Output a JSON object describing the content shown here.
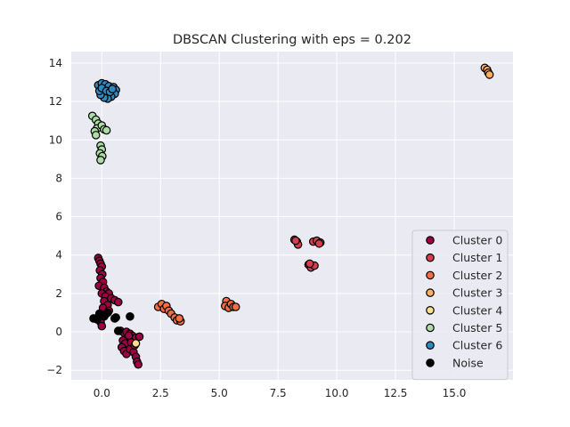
{
  "chart_data": {
    "type": "scatter",
    "title": "DBSCAN Clustering with eps = 0.202",
    "xlabel": "",
    "ylabel": "",
    "xlim": [
      -1.3,
      17.5
    ],
    "ylim": [
      -2.5,
      14.6
    ],
    "xticks": [
      0.0,
      2.5,
      5.0,
      7.5,
      10.0,
      12.5,
      15.0
    ],
    "xtick_labels": [
      "0.0",
      "2.5",
      "5.0",
      "7.5",
      "10.0",
      "12.5",
      "15.0"
    ],
    "yticks": [
      -2,
      0,
      2,
      4,
      6,
      8,
      10,
      12,
      14
    ],
    "ytick_labels": [
      "−2",
      "0",
      "2",
      "4",
      "6",
      "8",
      "10",
      "12",
      "14"
    ],
    "grid": true,
    "legend_position": "lower-right",
    "colors": {
      "background": "#eaeaf2",
      "grid": "#ffffff",
      "marker_edge": "#000000"
    },
    "series": [
      {
        "name": "Cluster 0",
        "color": "#9e0142",
        "points": [
          [
            -0.15,
            3.85
          ],
          [
            -0.1,
            3.7
          ],
          [
            -0.05,
            3.55
          ],
          [
            0.0,
            3.4
          ],
          [
            -0.08,
            3.2
          ],
          [
            0.02,
            3.0
          ],
          [
            -0.05,
            2.8
          ],
          [
            0.05,
            2.6
          ],
          [
            -0.12,
            2.4
          ],
          [
            0.1,
            2.3
          ],
          [
            0.2,
            2.1
          ],
          [
            0.3,
            2.0
          ],
          [
            0.0,
            2.0
          ],
          [
            0.15,
            1.85
          ],
          [
            0.4,
            1.75
          ],
          [
            0.55,
            1.65
          ],
          [
            0.7,
            1.55
          ],
          [
            0.1,
            1.6
          ],
          [
            0.25,
            1.4
          ],
          [
            0.05,
            1.25
          ],
          [
            0.3,
            1.1
          ],
          [
            0.15,
            0.9
          ],
          [
            0.0,
            0.75
          ],
          [
            -0.05,
            0.5
          ],
          [
            0.0,
            0.3
          ],
          [
            0.8,
            0.05
          ],
          [
            0.95,
            -0.05
          ],
          [
            1.05,
            0.0
          ],
          [
            1.2,
            -0.1
          ],
          [
            1.3,
            -0.2
          ],
          [
            1.45,
            -0.3
          ],
          [
            1.6,
            -0.25
          ],
          [
            1.1,
            -0.35
          ],
          [
            0.9,
            -0.45
          ],
          [
            1.0,
            -0.6
          ],
          [
            0.85,
            -0.8
          ],
          [
            0.95,
            -1.0
          ],
          [
            1.05,
            -1.15
          ],
          [
            1.2,
            -0.9
          ],
          [
            1.35,
            -1.05
          ],
          [
            1.45,
            -1.3
          ],
          [
            1.5,
            -1.55
          ],
          [
            1.55,
            -1.7
          ],
          [
            1.25,
            -0.55
          ],
          [
            1.4,
            -0.7
          ],
          [
            1.15,
            -0.2
          ]
        ]
      },
      {
        "name": "Cluster 1",
        "color": "#d53e4f",
        "points": [
          [
            8.2,
            4.8
          ],
          [
            8.3,
            4.7
          ],
          [
            8.35,
            4.55
          ],
          [
            8.25,
            4.75
          ],
          [
            9.0,
            4.7
          ],
          [
            9.15,
            4.75
          ],
          [
            9.3,
            4.65
          ],
          [
            9.25,
            4.6
          ],
          [
            8.8,
            3.5
          ],
          [
            8.9,
            3.35
          ],
          [
            9.05,
            3.45
          ],
          [
            8.85,
            3.55
          ]
        ]
      },
      {
        "name": "Cluster 2",
        "color": "#f46d43",
        "points": [
          [
            2.4,
            1.3
          ],
          [
            2.55,
            1.45
          ],
          [
            2.65,
            1.2
          ],
          [
            2.75,
            1.35
          ],
          [
            2.85,
            1.1
          ],
          [
            2.95,
            0.95
          ],
          [
            3.1,
            0.75
          ],
          [
            3.2,
            0.6
          ],
          [
            3.35,
            0.55
          ],
          [
            3.3,
            0.7
          ],
          [
            5.3,
            1.6
          ],
          [
            5.25,
            1.35
          ],
          [
            5.4,
            1.25
          ],
          [
            5.5,
            1.45
          ],
          [
            5.6,
            1.3
          ],
          [
            5.7,
            1.3
          ]
        ]
      },
      {
        "name": "Cluster 3",
        "color": "#fdae61",
        "points": [
          [
            16.3,
            13.75
          ],
          [
            16.4,
            13.65
          ],
          [
            16.45,
            13.5
          ],
          [
            16.5,
            13.4
          ]
        ]
      },
      {
        "name": "Cluster 4",
        "color": "#fee08b",
        "points": [
          [
            1.45,
            -0.6
          ]
        ]
      },
      {
        "name": "Cluster 5",
        "color": "#abdda4",
        "points": [
          [
            -0.4,
            11.25
          ],
          [
            -0.25,
            11.05
          ],
          [
            -0.15,
            10.85
          ],
          [
            -0.2,
            10.6
          ],
          [
            -0.3,
            10.45
          ],
          [
            -0.25,
            10.25
          ],
          [
            0.0,
            10.75
          ],
          [
            0.1,
            10.55
          ],
          [
            0.2,
            10.5
          ],
          [
            -0.05,
            9.7
          ],
          [
            0.0,
            9.5
          ],
          [
            -0.08,
            9.3
          ],
          [
            0.02,
            9.15
          ],
          [
            -0.05,
            8.95
          ]
        ]
      },
      {
        "name": "Cluster 6",
        "color": "#3288bd",
        "points": [
          [
            -0.15,
            12.85
          ],
          [
            0.0,
            12.95
          ],
          [
            0.15,
            12.9
          ],
          [
            0.3,
            12.8
          ],
          [
            0.5,
            12.75
          ],
          [
            0.6,
            12.6
          ],
          [
            0.55,
            12.4
          ],
          [
            0.4,
            12.25
          ],
          [
            0.25,
            12.15
          ],
          [
            0.1,
            12.2
          ],
          [
            -0.05,
            12.35
          ],
          [
            -0.1,
            12.55
          ],
          [
            0.0,
            12.7
          ],
          [
            0.2,
            12.55
          ],
          [
            0.35,
            12.5
          ],
          [
            0.45,
            12.65
          ]
        ]
      },
      {
        "name": "Noise",
        "color": "#000000",
        "points": [
          [
            -0.35,
            0.7
          ],
          [
            -0.2,
            0.65
          ],
          [
            -0.1,
            0.95
          ],
          [
            0.1,
            0.8
          ],
          [
            0.25,
            1.0
          ],
          [
            0.6,
            0.75
          ],
          [
            0.55,
            0.7
          ],
          [
            1.2,
            0.8
          ],
          [
            0.7,
            0.05
          ]
        ]
      }
    ]
  }
}
